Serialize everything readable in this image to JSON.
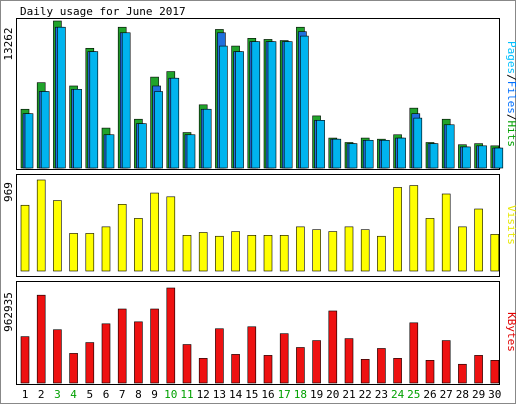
{
  "chart_data": {
    "type": "bar",
    "title": "Daily usage for June 2017",
    "x": [
      "1",
      "2",
      "3",
      "4",
      "5",
      "6",
      "7",
      "8",
      "9",
      "10",
      "11",
      "12",
      "13",
      "14",
      "15",
      "16",
      "17",
      "18",
      "19",
      "20",
      "21",
      "22",
      "23",
      "24",
      "25",
      "26",
      "27",
      "28",
      "29",
      "30"
    ],
    "weekend_days": [
      "3",
      "4",
      "10",
      "11",
      "17",
      "18",
      "24",
      "25"
    ],
    "weekend_color": "#00a000",
    "panels": [
      {
        "id": "hits",
        "ymax_label": "13262",
        "ymax": 13262,
        "legend": [
          {
            "text": "Pages",
            "color": "#00c0ff"
          },
          {
            "text": "/",
            "color": "#000000"
          },
          {
            "text": "Files",
            "color": "#0070ff"
          },
          {
            "text": "/",
            "color": "#000000"
          },
          {
            "text": "Hits",
            "color": "#00a000"
          }
        ],
        "series": [
          {
            "name": "Hits",
            "color": "#21a32b",
            "values": [
              5300,
              7700,
              13262,
              7400,
              10800,
              3600,
              12700,
              4400,
              8200,
              8700,
              3200,
              5700,
              12500,
              11000,
              11700,
              11600,
              11500,
              12700,
              4700,
              2700,
              2300,
              2700,
              2600,
              3000,
              5400,
              2300,
              4400,
              2100,
              2200,
              2000
            ]
          },
          {
            "name": "Files",
            "color": "#1f6fdc",
            "values": [
              4900,
              6900,
              12700,
              7100,
              10500,
              3000,
              12200,
              4000,
              7400,
              8100,
              3000,
              5300,
              12200,
              10500,
              11400,
              11400,
              11400,
              12300,
              4300,
              2600,
              2200,
              2500,
              2500,
              2700,
              4900,
              2200,
              3900,
              1900,
              2000,
              1800
            ]
          },
          {
            "name": "Pages",
            "color": "#00b4ee",
            "values": [
              4900,
              6900,
              12700,
              7100,
              10500,
              3000,
              12200,
              4000,
              6900,
              8100,
              3000,
              5300,
              11000,
              10500,
              11400,
              11400,
              11400,
              11900,
              4300,
              2600,
              2200,
              2500,
              2500,
              2700,
              4500,
              2200,
              3900,
              1900,
              2000,
              1800
            ]
          }
        ]
      },
      {
        "id": "visits",
        "ymax_label": "969",
        "ymax": 969,
        "legend": [
          {
            "text": "Visits",
            "color": "#e8e800"
          }
        ],
        "series": [
          {
            "name": "Visits",
            "color": "#ffff00",
            "values": [
              700,
              969,
              750,
              400,
              400,
              470,
              710,
              560,
              830,
              790,
              380,
              410,
              370,
              420,
              380,
              380,
              380,
              470,
              440,
              420,
              470,
              440,
              370,
              890,
              910,
              560,
              820,
              470,
              660,
              390
            ]
          }
        ]
      },
      {
        "id": "kbytes",
        "ymax_label": "962935",
        "ymax": 962935,
        "legend": [
          {
            "text": "KBytes",
            "color": "#e00000"
          }
        ],
        "series": [
          {
            "name": "KBytes",
            "color": "#ee1111",
            "values": [
              470000,
              890000,
              540000,
              300000,
              410000,
              600000,
              750000,
              620000,
              750000,
              962935,
              390000,
              250000,
              550000,
              290000,
              570000,
              280000,
              500000,
              360000,
              430000,
              730000,
              450000,
              240000,
              350000,
              250000,
              610000,
              230000,
              430000,
              190000,
              280000,
              230000
            ]
          }
        ]
      }
    ]
  }
}
